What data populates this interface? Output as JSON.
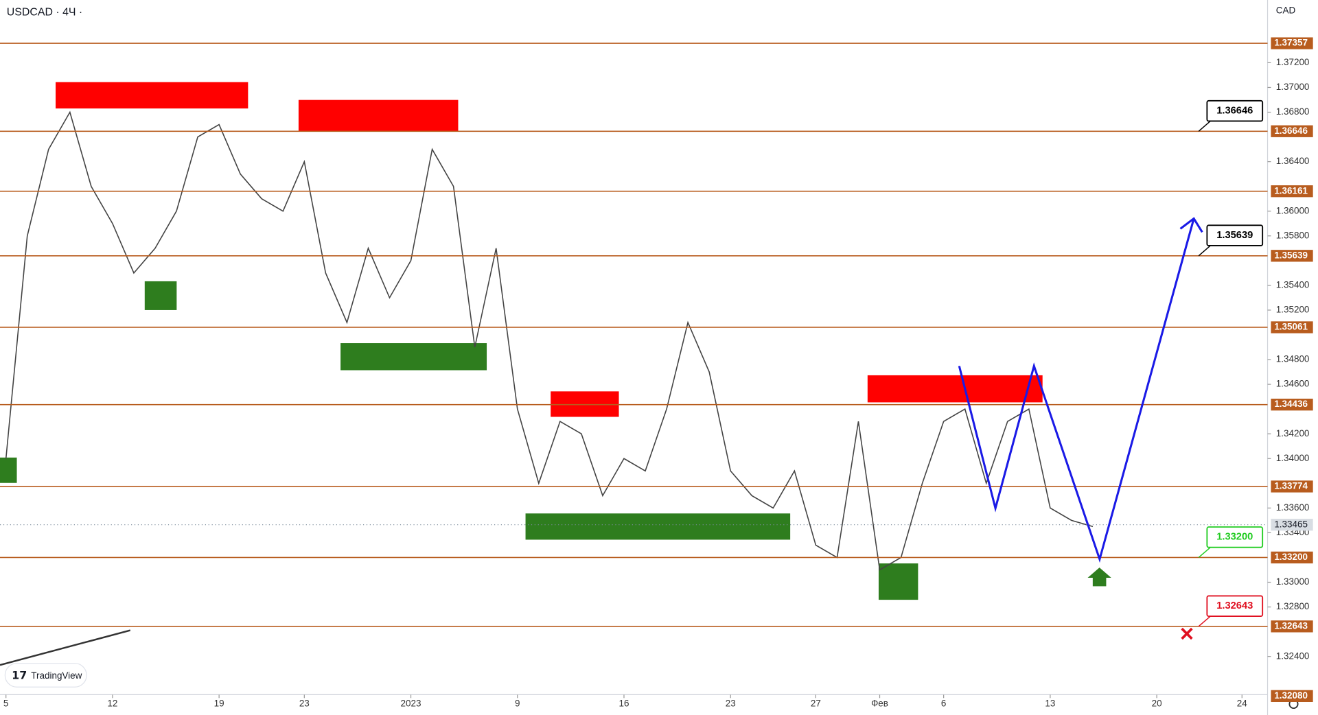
{
  "header": {
    "symbol": "USDCAD · 4Ч ·",
    "currency": "CAD",
    "brand": "TradingView"
  },
  "chart_data": {
    "type": "candlestick",
    "xlim": [
      -0.28,
      59.2
    ],
    "ylim": [
      1.32091,
      1.37707
    ],
    "xticks": [
      {
        "value": 0,
        "label": "5"
      },
      {
        "value": 5,
        "label": "12"
      },
      {
        "value": 10,
        "label": "19"
      },
      {
        "value": 14,
        "label": "23"
      },
      {
        "value": 19,
        "label": "2023"
      },
      {
        "value": 24,
        "label": "9"
      },
      {
        "value": 29,
        "label": "16"
      },
      {
        "value": 34,
        "label": "23"
      },
      {
        "value": 38,
        "label": "27"
      },
      {
        "value": 41,
        "label": "Фев"
      },
      {
        "value": 44,
        "label": "6"
      },
      {
        "value": 49,
        "label": "13"
      },
      {
        "value": 54,
        "label": "20"
      },
      {
        "value": 58,
        "label": "24"
      }
    ],
    "yticks": [
      {
        "value": 1.372,
        "label": "1.37200"
      },
      {
        "value": 1.37,
        "label": "1.37000"
      },
      {
        "value": 1.368,
        "label": "1.36800"
      },
      {
        "value": 1.364,
        "label": "1.36400"
      },
      {
        "value": 1.36,
        "label": "1.36000"
      },
      {
        "value": 1.358,
        "label": "1.35800"
      },
      {
        "value": 1.354,
        "label": "1.35400"
      },
      {
        "value": 1.352,
        "label": "1.35200"
      },
      {
        "value": 1.348,
        "label": "1.34800"
      },
      {
        "value": 1.346,
        "label": "1.34600"
      },
      {
        "value": 1.342,
        "label": "1.34200"
      },
      {
        "value": 1.34,
        "label": "1.34000"
      },
      {
        "value": 1.336,
        "label": "1.33600"
      },
      {
        "value": 1.334,
        "label": "1.33400"
      },
      {
        "value": 1.33,
        "label": "1.33000"
      },
      {
        "value": 1.328,
        "label": "1.32800"
      },
      {
        "value": 1.324,
        "label": "1.32400"
      }
    ],
    "levels": [
      {
        "value": 1.37357,
        "label": "1.37357"
      },
      {
        "value": 1.36646,
        "label": "1.36646"
      },
      {
        "value": 1.36161,
        "label": "1.36161"
      },
      {
        "value": 1.35639,
        "label": "1.35639"
      },
      {
        "value": 1.35061,
        "label": "1.35061"
      },
      {
        "value": 1.34436,
        "label": "1.34436"
      },
      {
        "value": 1.33774,
        "label": "1.33774"
      },
      {
        "value": 1.332,
        "label": "1.33200"
      },
      {
        "value": 1.32643,
        "label": "1.32643"
      }
    ],
    "bottom_label": {
      "value": 1.3208,
      "label": "1.32080"
    },
    "current_price": {
      "value": 1.33465,
      "label": "1.33465"
    },
    "level_color": "#b85c1e",
    "callouts": [
      {
        "value": 1.36646,
        "label": "1.36646",
        "color": "#000000"
      },
      {
        "value": 1.35639,
        "label": "1.35639",
        "color": "#000000"
      },
      {
        "value": 1.332,
        "label": "1.33200",
        "color": "#22cc22"
      },
      {
        "value": 1.32643,
        "label": "1.32643",
        "color": "#e01020"
      }
    ],
    "zones": [
      {
        "x0": 2.33,
        "x1": 11.36,
        "y0": 1.3683,
        "y1": 1.37043,
        "color": "#ff0000"
      },
      {
        "x0": 13.73,
        "x1": 21.22,
        "y0": 1.36645,
        "y1": 1.36899,
        "color": "#ff0000"
      },
      {
        "x0": 25.56,
        "x1": 28.76,
        "y0": 1.34337,
        "y1": 1.34543,
        "color": "#ff0000"
      },
      {
        "x0": 40.43,
        "x1": 48.64,
        "y0": 1.34454,
        "y1": 1.34673,
        "color": "#ff0000"
      },
      {
        "x0": 6.51,
        "x1": 8.01,
        "y0": 1.352,
        "y1": 1.35433,
        "color": "#2e7d1e"
      },
      {
        "x0": 15.7,
        "x1": 22.56,
        "y0": 1.34714,
        "y1": 1.34933,
        "color": "#2e7d1e"
      },
      {
        "x0": 24.38,
        "x1": 36.8,
        "y0": 1.33344,
        "y1": 1.33556,
        "color": "#2e7d1e"
      },
      {
        "x0": 40.95,
        "x1": 42.8,
        "y0": 1.32858,
        "y1": 1.33152,
        "color": "#2e7d1e"
      },
      {
        "x0": -0.28,
        "x1": 0.51,
        "y0": 1.33803,
        "y1": 1.34008,
        "color": "#2e7d1e"
      }
    ],
    "price_path": {
      "color": "#444444",
      "x": [
        0,
        1,
        2,
        3,
        4,
        5,
        6,
        7,
        8,
        9,
        10,
        11,
        12,
        13,
        14,
        15,
        16,
        17,
        18,
        19,
        20,
        21,
        22,
        23,
        24,
        25,
        26,
        27,
        28,
        29,
        30,
        31,
        32,
        33,
        34,
        35,
        36,
        37,
        38,
        39,
        40,
        41,
        42,
        43,
        44,
        45,
        46,
        47,
        48,
        49,
        50,
        51
      ],
      "values": [
        1.34,
        1.358,
        1.365,
        1.368,
        1.362,
        1.359,
        1.355,
        1.357,
        1.36,
        1.366,
        1.367,
        1.363,
        1.361,
        1.36,
        1.364,
        1.355,
        1.351,
        1.357,
        1.353,
        1.356,
        1.365,
        1.362,
        1.349,
        1.357,
        1.344,
        1.338,
        1.343,
        1.342,
        1.337,
        1.34,
        1.339,
        1.344,
        1.351,
        1.347,
        1.339,
        1.337,
        1.336,
        1.339,
        1.333,
        1.332,
        1.343,
        1.331,
        1.332,
        1.338,
        1.343,
        1.344,
        1.338,
        1.343,
        1.344,
        1.336,
        1.335,
        1.3345
      ]
    },
    "pattern": {
      "color": "#1a1ae6",
      "x": [
        44.73,
        46.43,
        48.24,
        51.32,
        55.74
      ],
      "values": [
        1.34748,
        1.33598,
        1.34748,
        1.33186,
        1.3594
      ]
    }
  }
}
